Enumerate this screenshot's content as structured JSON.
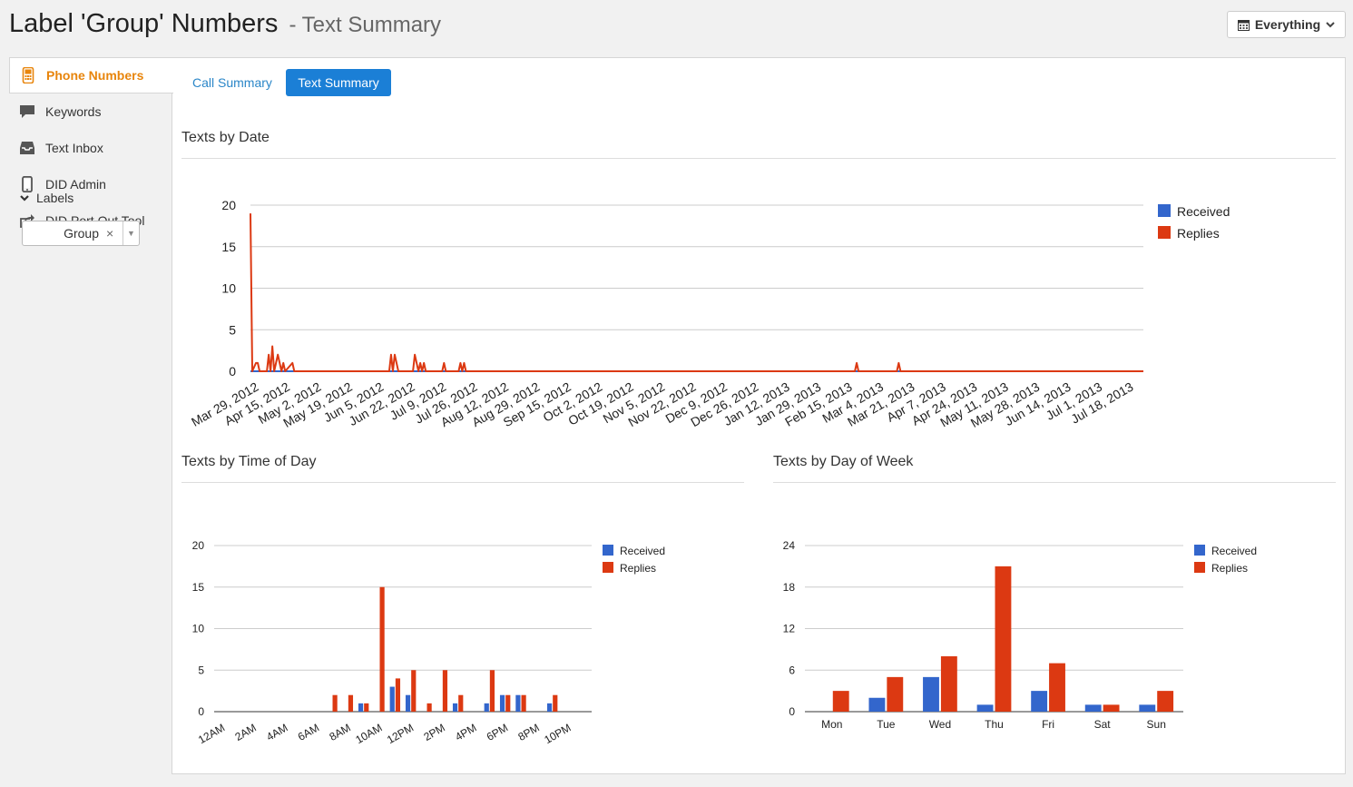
{
  "header": {
    "title": "Label 'Group' Numbers",
    "subtitle": "- Text Summary",
    "range_label": "Everything"
  },
  "sidebar": {
    "items": [
      {
        "label": "Phone Numbers",
        "icon": "phone-icon",
        "active": true
      },
      {
        "label": "Keywords",
        "icon": "speech-bubble-icon"
      },
      {
        "label": "Text Inbox",
        "icon": "inbox-icon"
      },
      {
        "label": "DID Admin",
        "icon": "mobile-icon"
      },
      {
        "label": "DID Port Out Tool",
        "icon": "share-icon"
      }
    ],
    "labels_heading": "Labels",
    "label_select": {
      "value": "Group",
      "clear": "×"
    }
  },
  "tabs": [
    {
      "label": "Call Summary",
      "active": false
    },
    {
      "label": "Text Summary",
      "active": true
    }
  ],
  "sections": {
    "by_date": "Texts by Date",
    "by_time": "Texts by Time of Day",
    "by_weekday": "Texts by Day of Week"
  },
  "colors": {
    "received": "#3366cc",
    "replies": "#dc3912",
    "accent": "#e8850c",
    "tab_active": "#1b7fd6"
  },
  "chart_data": [
    {
      "type": "line",
      "title": "Texts by Date",
      "series_names": [
        "Received",
        "Replies"
      ],
      "ylim": [
        0,
        20
      ],
      "yticks": [
        0,
        5,
        10,
        15,
        20
      ],
      "xlim": [
        "2012-03-29",
        "2013-07-31"
      ],
      "x_tick_labels": [
        "Mar 29, 2012",
        "Apr 15, 2012",
        "May 2, 2012",
        "May 19, 2012",
        "Jun 5, 2012",
        "Jun 22, 2012",
        "Jul 9, 2012",
        "Jul 26, 2012",
        "Aug 12, 2012",
        "Aug 29, 2012",
        "Sep 15, 2012",
        "Oct 2, 2012",
        "Oct 19, 2012",
        "Nov 5, 2012",
        "Nov 22, 2012",
        "Dec 9, 2012",
        "Dec 26, 2012",
        "Jan 12, 2013",
        "Jan 29, 2013",
        "Feb 15, 2013",
        "Mar 4, 2013",
        "Mar 21, 2013",
        "Apr 7, 2013",
        "Apr 24, 2013",
        "May 11, 2013",
        "May 28, 2013",
        "Jun 14, 2013",
        "Jul 1, 2013",
        "Jul 18, 2013"
      ],
      "replies": [
        {
          "x": "2012-03-29",
          "y": 19
        },
        {
          "x": "2012-03-30",
          "y": 0
        },
        {
          "x": "2012-04-01",
          "y": 1
        },
        {
          "x": "2012-04-02",
          "y": 1
        },
        {
          "x": "2012-04-03",
          "y": 0
        },
        {
          "x": "2012-04-07",
          "y": 0
        },
        {
          "x": "2012-04-08",
          "y": 2
        },
        {
          "x": "2012-04-09",
          "y": 0
        },
        {
          "x": "2012-04-10",
          "y": 3
        },
        {
          "x": "2012-04-11",
          "y": 0
        },
        {
          "x": "2012-04-13",
          "y": 2
        },
        {
          "x": "2012-04-14",
          "y": 1
        },
        {
          "x": "2012-04-15",
          "y": 0
        },
        {
          "x": "2012-04-16",
          "y": 1
        },
        {
          "x": "2012-04-17",
          "y": 0
        },
        {
          "x": "2012-04-21",
          "y": 1
        },
        {
          "x": "2012-04-22",
          "y": 0
        },
        {
          "x": "2012-06-13",
          "y": 0
        },
        {
          "x": "2012-06-14",
          "y": 2
        },
        {
          "x": "2012-06-15",
          "y": 0
        },
        {
          "x": "2012-06-16",
          "y": 2
        },
        {
          "x": "2012-06-17",
          "y": 1
        },
        {
          "x": "2012-06-18",
          "y": 0
        },
        {
          "x": "2012-06-26",
          "y": 0
        },
        {
          "x": "2012-06-27",
          "y": 2
        },
        {
          "x": "2012-06-28",
          "y": 1
        },
        {
          "x": "2012-06-29",
          "y": 0
        },
        {
          "x": "2012-06-30",
          "y": 1
        },
        {
          "x": "2012-07-01",
          "y": 0
        },
        {
          "x": "2012-07-02",
          "y": 1
        },
        {
          "x": "2012-07-03",
          "y": 0
        },
        {
          "x": "2012-07-12",
          "y": 0
        },
        {
          "x": "2012-07-13",
          "y": 1
        },
        {
          "x": "2012-07-14",
          "y": 0
        },
        {
          "x": "2012-07-21",
          "y": 0
        },
        {
          "x": "2012-07-22",
          "y": 1
        },
        {
          "x": "2012-07-23",
          "y": 0
        },
        {
          "x": "2012-07-24",
          "y": 1
        },
        {
          "x": "2012-07-25",
          "y": 0
        },
        {
          "x": "2013-02-23",
          "y": 0
        },
        {
          "x": "2013-02-24",
          "y": 1
        },
        {
          "x": "2013-02-25",
          "y": 0
        },
        {
          "x": "2013-03-18",
          "y": 0
        },
        {
          "x": "2013-03-19",
          "y": 1
        },
        {
          "x": "2013-03-20",
          "y": 0
        },
        {
          "x": "2013-07-31",
          "y": 0
        }
      ],
      "received": [
        {
          "x": "2012-03-29",
          "y": 0
        },
        {
          "x": "2013-07-31",
          "y": 0
        }
      ],
      "legend": "right"
    },
    {
      "type": "bar",
      "title": "Texts by Time of Day",
      "categories": [
        "12AM",
        "1AM",
        "2AM",
        "3AM",
        "4AM",
        "5AM",
        "6AM",
        "7AM",
        "8AM",
        "9AM",
        "10AM",
        "11AM",
        "12PM",
        "1PM",
        "2PM",
        "3PM",
        "4PM",
        "5PM",
        "6PM",
        "7PM",
        "8PM",
        "9PM",
        "10PM",
        "11PM"
      ],
      "x_tick_labels": [
        "12AM",
        "2AM",
        "4AM",
        "6AM",
        "8AM",
        "10AM",
        "12PM",
        "2PM",
        "4PM",
        "6PM",
        "8PM",
        "10PM"
      ],
      "series": [
        {
          "name": "Received",
          "values": [
            0,
            0,
            0,
            0,
            0,
            0,
            0,
            0,
            0,
            1,
            0,
            3,
            2,
            0,
            0,
            1,
            0,
            1,
            2,
            2,
            0,
            1,
            0,
            0
          ]
        },
        {
          "name": "Replies",
          "values": [
            0,
            0,
            0,
            0,
            0,
            0,
            0,
            2,
            2,
            1,
            15,
            4,
            5,
            1,
            5,
            2,
            0,
            5,
            2,
            2,
            0,
            2,
            0,
            0
          ]
        }
      ],
      "ylim": [
        0,
        20
      ],
      "yticks": [
        0,
        5,
        10,
        15,
        20
      ],
      "legend": "right"
    },
    {
      "type": "bar",
      "title": "Texts by Day of Week",
      "categories": [
        "Mon",
        "Tue",
        "Wed",
        "Thu",
        "Fri",
        "Sat",
        "Sun"
      ],
      "series": [
        {
          "name": "Received",
          "values": [
            0,
            2,
            5,
            1,
            3,
            1,
            1
          ]
        },
        {
          "name": "Replies",
          "values": [
            3,
            5,
            8,
            21,
            7,
            1,
            3
          ]
        }
      ],
      "ylim": [
        0,
        24
      ],
      "yticks": [
        0,
        6,
        12,
        18,
        24
      ],
      "legend": "right"
    }
  ]
}
